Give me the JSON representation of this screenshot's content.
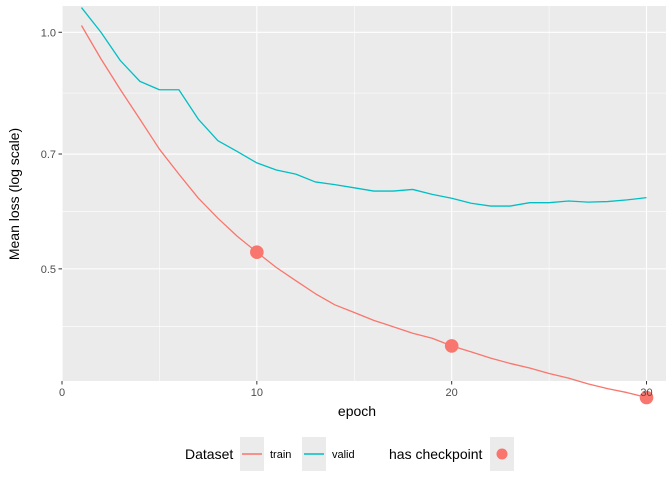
{
  "chart_data": {
    "type": "line",
    "xlabel": "epoch",
    "ylabel": "Mean loss (log scale)",
    "y_scale": "log",
    "xlim": [
      0,
      31
    ],
    "ylim": [
      0.36,
      1.08
    ],
    "x_ticks": [
      0,
      10,
      20,
      30
    ],
    "x_tick_labels": [
      "0",
      "10",
      "20",
      "30"
    ],
    "y_ticks": [
      0.5,
      0.7,
      1.0
    ],
    "y_tick_labels": [
      "0.5",
      "0.7",
      "1.0"
    ],
    "grid": true,
    "background": "#ebebeb",
    "series": [
      {
        "name": "train",
        "color": "#F8766D",
        "x": [
          1,
          2,
          3,
          4,
          5,
          6,
          7,
          8,
          9,
          10,
          11,
          12,
          13,
          14,
          15,
          16,
          17,
          18,
          19,
          20,
          21,
          22,
          23,
          24,
          25,
          26,
          27,
          28,
          29,
          30
        ],
        "values": [
          1.02,
          0.925,
          0.845,
          0.775,
          0.71,
          0.66,
          0.615,
          0.58,
          0.55,
          0.525,
          0.502,
          0.483,
          0.465,
          0.45,
          0.44,
          0.43,
          0.422,
          0.414,
          0.408,
          0.399,
          0.392,
          0.385,
          0.379,
          0.374,
          0.368,
          0.363,
          0.357,
          0.352,
          0.348,
          0.343
        ]
      },
      {
        "name": "valid",
        "color": "#00BFC4",
        "x": [
          1,
          2,
          3,
          4,
          5,
          6,
          7,
          8,
          9,
          10,
          11,
          12,
          13,
          14,
          15,
          16,
          17,
          18,
          19,
          20,
          21,
          22,
          23,
          24,
          25,
          26,
          27,
          28,
          29,
          30
        ],
        "values": [
          1.075,
          1.0,
          0.92,
          0.866,
          0.845,
          0.845,
          0.775,
          0.728,
          0.705,
          0.682,
          0.668,
          0.66,
          0.645,
          0.64,
          0.634,
          0.628,
          0.628,
          0.631,
          0.622,
          0.615,
          0.606,
          0.601,
          0.601,
          0.607,
          0.607,
          0.61,
          0.608,
          0.609,
          0.612,
          0.616
        ]
      }
    ],
    "checkpoints": {
      "name": "has checkpoint",
      "color": "#F8766D",
      "points": [
        {
          "x": 10,
          "y": 0.525
        },
        {
          "x": 20,
          "y": 0.399
        },
        {
          "x": 30,
          "y": 0.343
        }
      ]
    },
    "legend": {
      "placement": "bottom",
      "dataset_title": "Dataset",
      "dataset_items": [
        "train",
        "valid"
      ],
      "checkpoint_title": "has checkpoint"
    }
  }
}
